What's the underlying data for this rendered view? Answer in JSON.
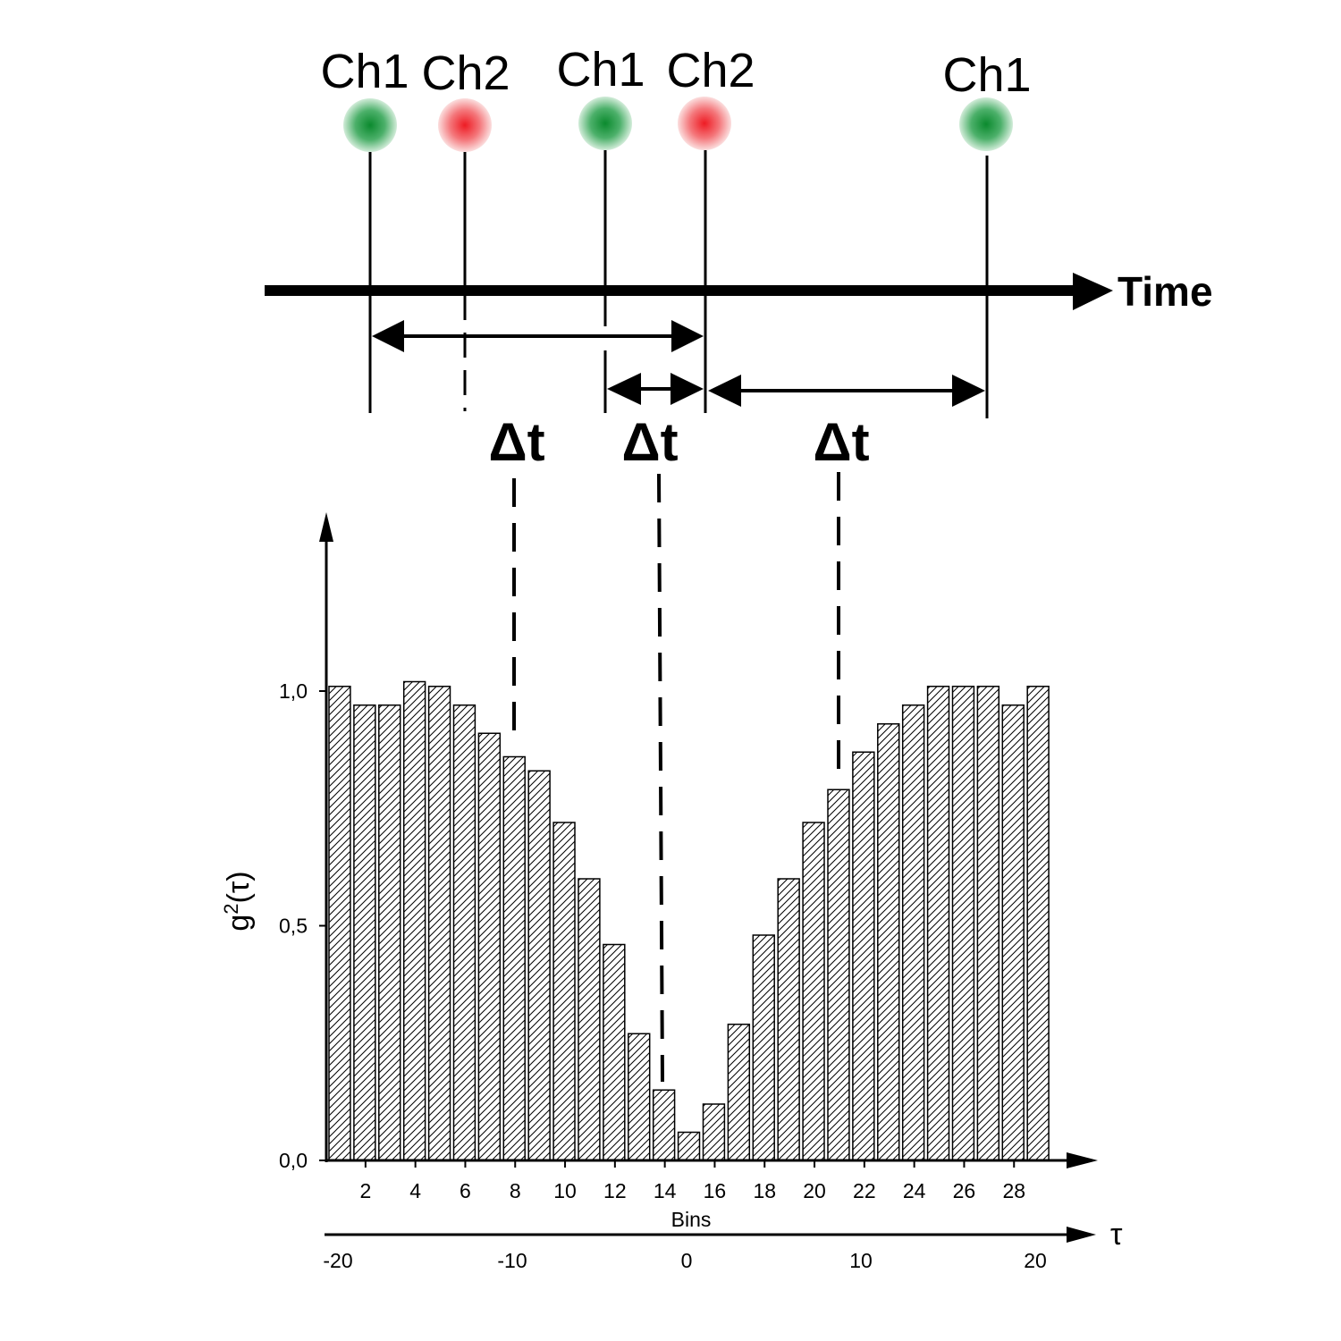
{
  "timeline": {
    "axis_label": "Time",
    "events": [
      {
        "label": "Ch1",
        "channel": 1,
        "color": "#1a9a3c"
      },
      {
        "label": "Ch2",
        "channel": 2,
        "color": "#ee1c24"
      },
      {
        "label": "Ch1",
        "channel": 1,
        "color": "#1a9a3c"
      },
      {
        "label": "Ch2",
        "channel": 2,
        "color": "#ee1c24"
      },
      {
        "label": "Ch1",
        "channel": 1,
        "color": "#1a9a3c"
      }
    ],
    "intervals": [
      {
        "label": "Δt"
      },
      {
        "label": "Δt"
      },
      {
        "label": "Δt"
      }
    ]
  },
  "chart_data": {
    "type": "bar",
    "title": "",
    "ylabel_base": "g",
    "ylabel_sup": "2",
    "ylabel_tail": "(τ)",
    "xlabel": "Bins",
    "x2label": "τ",
    "ylim": [
      0,
      1.0
    ],
    "yticks": [
      "0,0",
      "0,5",
      "1,0"
    ],
    "ytick_values": [
      0,
      0.5,
      1.0
    ],
    "bins_ticks": [
      2,
      4,
      6,
      8,
      10,
      12,
      14,
      16,
      18,
      20,
      22,
      24,
      26,
      28
    ],
    "tau_ticks": [
      "-20",
      "-10",
      "0",
      "10",
      "20"
    ],
    "tau_values": [
      -20,
      -10,
      0,
      10,
      20
    ],
    "bar_pattern": "diagonal-hatch",
    "bins": [
      1,
      2,
      3,
      4,
      5,
      6,
      7,
      8,
      9,
      10,
      11,
      12,
      13,
      14,
      15,
      16,
      17,
      18,
      19,
      20,
      21,
      22,
      23,
      24,
      25,
      26,
      27,
      28,
      29
    ],
    "values": [
      1.01,
      0.97,
      0.97,
      1.02,
      1.01,
      0.97,
      0.91,
      0.86,
      0.83,
      0.72,
      0.6,
      0.46,
      0.27,
      0.15,
      0.06,
      0.12,
      0.29,
      0.48,
      0.6,
      0.72,
      0.79,
      0.87,
      0.93,
      0.97,
      1.01,
      1.01,
      1.01,
      0.97,
      1.01
    ]
  }
}
